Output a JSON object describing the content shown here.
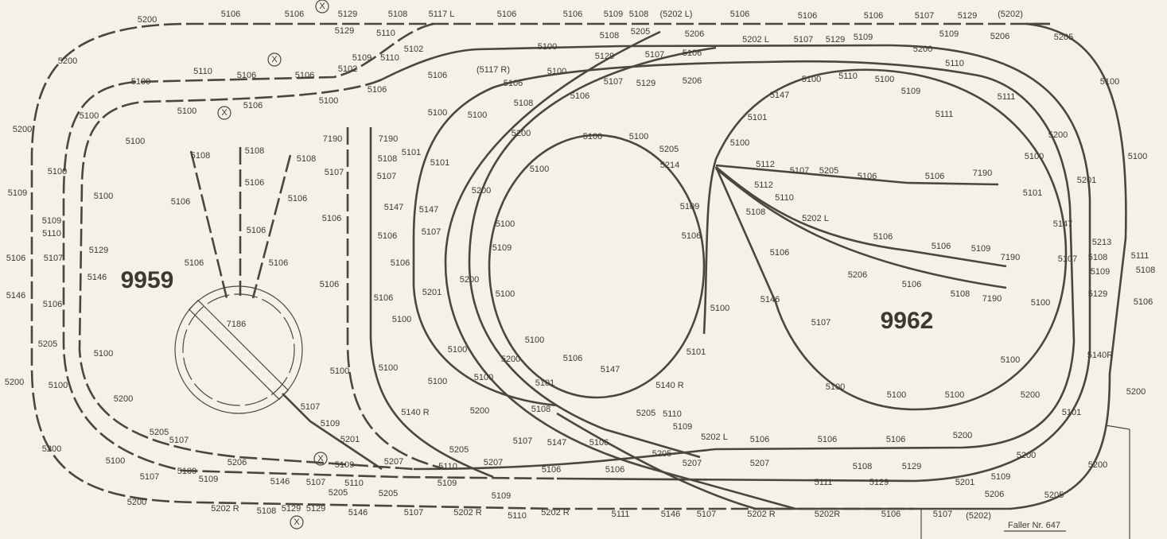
{
  "labels": [
    "5200",
    "5106",
    "5106",
    "X",
    "5129",
    "5108",
    "5117 L",
    "5106",
    "5106",
    "5109",
    "5108",
    "(5202 L)",
    "5106",
    "5106",
    "5106",
    "5107",
    "5129",
    "(5202)",
    "5129",
    "5110",
    "5108",
    "5205",
    "5206",
    "5109",
    "5206",
    "5205",
    "5102",
    "5200",
    "5100",
    "5202 L",
    "5107",
    "5129",
    "5109",
    "X",
    "5109",
    "5110",
    "5129",
    "5107",
    "5106",
    "5200",
    "5100",
    "5110",
    "5106",
    "5106",
    "5102",
    "5106",
    "(5117 R)",
    "5100",
    "5107",
    "5129",
    "5206",
    "5110",
    "5100",
    "5106",
    "5106",
    "5100",
    "5110",
    "5100",
    "5109",
    "5100",
    "X",
    "5106",
    "5100",
    "5108",
    "5106",
    "5147",
    "5111",
    "5100",
    "5200",
    "5100",
    "5100",
    "5101",
    "5111",
    "5100",
    "7190",
    "7190",
    "5200",
    "5100",
    "5100",
    "5205",
    "5100",
    "5200",
    "5108",
    "5108",
    "5108",
    "5108",
    "5101",
    "5214",
    "5112",
    "5107",
    "5205",
    "5106",
    "5106",
    "7190",
    "5100",
    "5100",
    "5100",
    "5107",
    "5107",
    "5101",
    "5100",
    "5112",
    "5201",
    "5106",
    "5106",
    "5106",
    "5200",
    "5110",
    "5109",
    "5100",
    "5147",
    "5147",
    "5109",
    "5108",
    "5202 L",
    "5101",
    "5109",
    "5110",
    "5106",
    "5106",
    "5107",
    "5100",
    "5106",
    "5147",
    "5106",
    "5213",
    "5111",
    "5129",
    "5109",
    "5106",
    "5106",
    "5109",
    "7190",
    "5106",
    "5107",
    "5106",
    "5106",
    "5106",
    "5106",
    "5107",
    "5108",
    "5108",
    "5146",
    "9959",
    "5109",
    "5206",
    "5106",
    "5106",
    "5200",
    "5146",
    "5106",
    "5201",
    "5100",
    "5100",
    "5146",
    "5108",
    "7190",
    "5100",
    "5129",
    "5106",
    "5106",
    "7186",
    "5100",
    "5107",
    "9962",
    "5205",
    "5100",
    "5100",
    "5100",
    "5200",
    "5106",
    "5101",
    "5100",
    "5140R",
    "5100",
    "5100",
    "5147",
    "5200",
    "5100",
    "5100",
    "5100",
    "5101",
    "5140 R",
    "5100",
    "5100",
    "5100",
    "5200",
    "5200",
    "5200",
    "5140 R",
    "5108",
    "5205",
    "5110",
    "5107",
    "5109",
    "5101",
    "5200",
    "5109",
    "5205",
    "5107",
    "5201",
    "5107",
    "5147",
    "5106",
    "5202 L",
    "5106",
    "5106",
    "5106",
    "5200",
    "5205",
    "5200",
    "5206",
    "X",
    "5109",
    "5207",
    "5207",
    "5205",
    "5200",
    "5200",
    "5100",
    "5107",
    "5109",
    "5109",
    "5110",
    "5106",
    "5106",
    "5207",
    "5207",
    "5108",
    "5129",
    "5201",
    "5109",
    "5146",
    "5107",
    "5110",
    "5109",
    "5129",
    "5111",
    "5200",
    "5202 R",
    "5108",
    "5129",
    "5129",
    "5205",
    "5205",
    "5109",
    "5206",
    "5205",
    "5146",
    "5107",
    "5202 R",
    "5110",
    "5202 R",
    "5111",
    "5146",
    "5107",
    "5202 R",
    "5202R",
    "5106",
    "5107",
    "(5202)",
    "X",
    "Faller Nr. 647"
  ]
}
